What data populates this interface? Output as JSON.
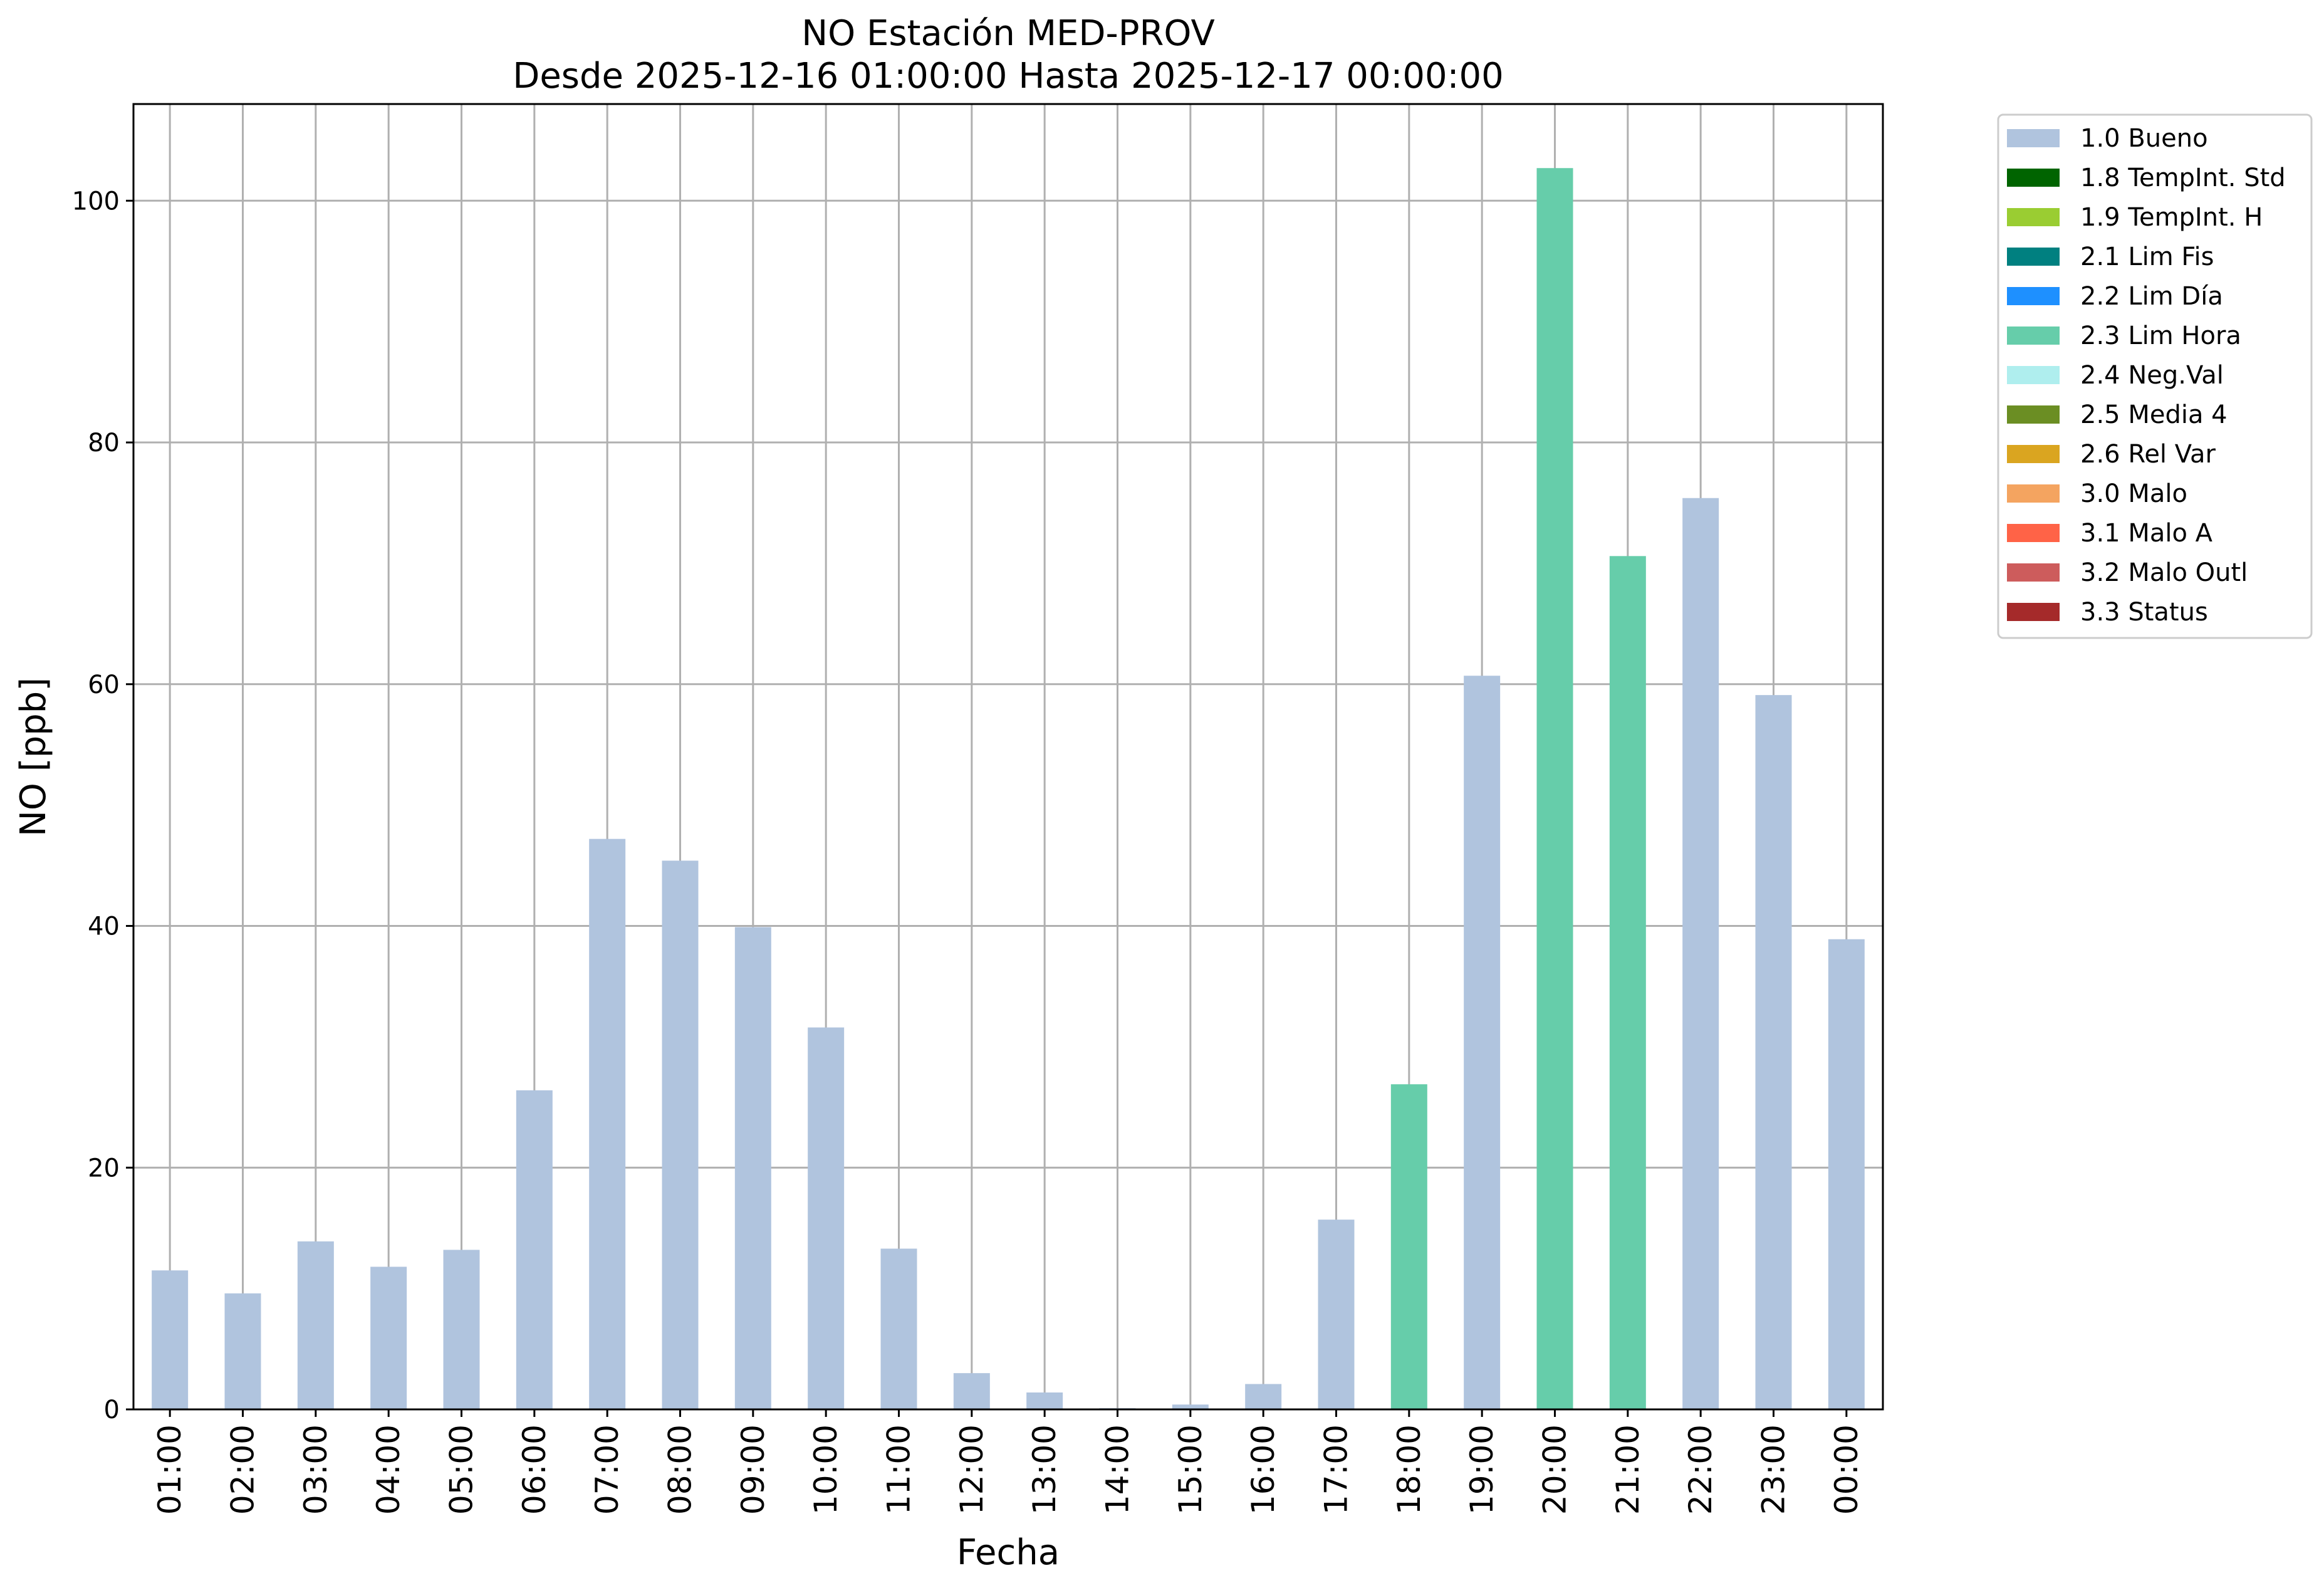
{
  "chart_data": {
    "type": "bar",
    "title": "NO Estación MED-PROV",
    "subtitle": "Desde 2025-12-16 01:00:00 Hasta 2025-12-17 00:00:00",
    "xlabel": "Fecha",
    "ylabel": "NO [ppb]",
    "ylim": [
      0,
      108
    ],
    "yticks": [
      0,
      20,
      40,
      60,
      80,
      100
    ],
    "grid": true,
    "legend_position": "outside-right-top",
    "categories": [
      "01:00",
      "02:00",
      "03:00",
      "04:00",
      "05:00",
      "06:00",
      "07:00",
      "08:00",
      "09:00",
      "10:00",
      "11:00",
      "12:00",
      "13:00",
      "14:00",
      "15:00",
      "16:00",
      "17:00",
      "18:00",
      "19:00",
      "20:00",
      "21:00",
      "22:00",
      "23:00",
      "00:00"
    ],
    "values": [
      11.5,
      9.6,
      13.9,
      11.8,
      13.2,
      26.4,
      47.2,
      45.4,
      39.9,
      31.6,
      13.3,
      3.0,
      1.4,
      0.1,
      0.4,
      2.1,
      15.7,
      26.9,
      60.7,
      102.7,
      70.6,
      75.4,
      59.1,
      38.9
    ],
    "flags": [
      "1.0 Bueno",
      "1.0 Bueno",
      "1.0 Bueno",
      "1.0 Bueno",
      "1.0 Bueno",
      "1.0 Bueno",
      "1.0 Bueno",
      "1.0 Bueno",
      "1.0 Bueno",
      "1.0 Bueno",
      "1.0 Bueno",
      "1.0 Bueno",
      "1.0 Bueno",
      "1.0 Bueno",
      "1.0 Bueno",
      "1.0 Bueno",
      "1.0 Bueno",
      "2.3 Lim Hora",
      "1.0 Bueno",
      "2.3 Lim Hora",
      "2.3 Lim Hora",
      "1.0 Bueno",
      "1.0 Bueno",
      "1.0 Bueno"
    ],
    "legend": [
      {
        "label": "1.0 Bueno",
        "color": "#b0c4de"
      },
      {
        "label": "1.8 TempInt. Std",
        "color": "#006400"
      },
      {
        "label": "1.9 TempInt. H",
        "color": "#9acd32"
      },
      {
        "label": "2.1 Lim Fis",
        "color": "#008080"
      },
      {
        "label": "2.2 Lim Día",
        "color": "#1e90ff"
      },
      {
        "label": "2.3 Lim Hora",
        "color": "#66cdaa"
      },
      {
        "label": "2.4 Neg.Val",
        "color": "#afeeee"
      },
      {
        "label": "2.5 Media 4",
        "color": "#6b8e23"
      },
      {
        "label": "2.6 Rel Var",
        "color": "#daa520"
      },
      {
        "label": "3.0 Malo",
        "color": "#f4a460"
      },
      {
        "label": "3.1 Malo A",
        "color": "#ff6347"
      },
      {
        "label": "3.2 Malo Outl",
        "color": "#cd5c5c"
      },
      {
        "label": "3.3 Status",
        "color": "#a52a2a"
      }
    ]
  }
}
